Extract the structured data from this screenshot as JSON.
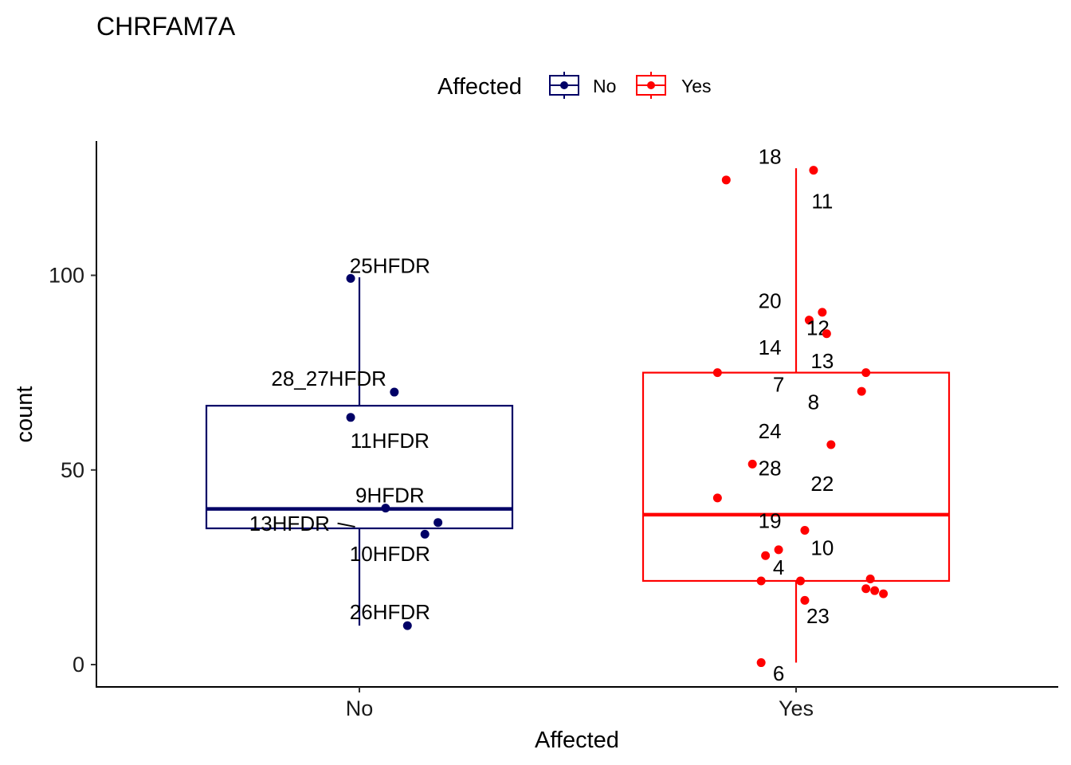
{
  "chart_data": {
    "type": "boxplot",
    "title": "CHRFAM7A",
    "xlabel": "Affected",
    "ylabel": "count",
    "ylim": [
      -5.5,
      128
    ],
    "yticks": [
      0,
      50,
      100
    ],
    "ytick_labels": [
      "0",
      "50",
      "100"
    ],
    "categories": [
      "No",
      "Yes"
    ],
    "grid": false,
    "legend": {
      "title": "Affected",
      "position": "top",
      "entries": [
        {
          "label": "No",
          "color": "#000066"
        },
        {
          "label": "Yes",
          "color": "#FF0000"
        }
      ]
    },
    "boxes": [
      {
        "category": "No",
        "color": "#000066",
        "whisker_low": 10,
        "q1": 35,
        "median": 40,
        "q3": 66.5,
        "whisker_high": 99.5
      },
      {
        "category": "Yes",
        "color": "#FF0000",
        "whisker_low": 0.5,
        "q1": 21.5,
        "median": 38.5,
        "q3": 75,
        "whisker_high": 127.5
      }
    ],
    "points": [
      {
        "category": "No",
        "jitter": -0.02,
        "value": 99.2,
        "label": "25HFDR",
        "lx": 0.07,
        "ly": 102.5
      },
      {
        "category": "No",
        "jitter": 0.08,
        "value": 70,
        "label": "28_27HFDR",
        "lx": -0.07,
        "ly": 73.5
      },
      {
        "category": "No",
        "jitter": -0.02,
        "value": 63.5,
        "label": "11HFDR",
        "lx": 0.07,
        "ly": 57.5
      },
      {
        "category": "No",
        "jitter": 0.06,
        "value": 40.2,
        "label": "9HFDR",
        "lx": 0.07,
        "ly": 43.5
      },
      {
        "category": "No",
        "jitter": 0.18,
        "value": 36.5,
        "label": "13HFDR",
        "lx": -0.16,
        "ly": 36.2,
        "seg": [
          -0.05,
          36.3,
          -0.01,
          35.4
        ]
      },
      {
        "category": "No",
        "jitter": 0.15,
        "value": 33.5,
        "label": "10HFDR",
        "lx": 0.07,
        "ly": 28.5
      },
      {
        "category": "No",
        "jitter": 0.11,
        "value": 10,
        "label": "26HFDR",
        "lx": 0.07,
        "ly": 13.5
      },
      {
        "category": "Yes",
        "jitter": 0.04,
        "value": 127,
        "label": "18",
        "lx": -0.06,
        "ly": 130.5
      },
      {
        "category": "Yes",
        "jitter": -0.16,
        "value": 124.5,
        "label": "11",
        "lx": 0.06,
        "ly": 119
      },
      {
        "category": "Yes",
        "jitter": 0.06,
        "value": 90.5,
        "label": "20",
        "lx": -0.06,
        "ly": 93.5
      },
      {
        "category": "Yes",
        "jitter": 0.03,
        "value": 88.5,
        "label": "12",
        "lx": 0.05,
        "ly": 86.5
      },
      {
        "category": "Yes",
        "jitter": 0.07,
        "value": 85,
        "label": "14",
        "lx": -0.06,
        "ly": 81.5
      },
      {
        "category": "Yes",
        "jitter": -0.18,
        "value": 75,
        "label": "13",
        "lx": 0.06,
        "ly": 78
      },
      {
        "category": "Yes",
        "jitter": 0.16,
        "value": 75,
        "label": "7",
        "lx": -0.04,
        "ly": 72
      },
      {
        "category": "Yes",
        "jitter": 0.15,
        "value": 70.2,
        "label": "8",
        "lx": 0.04,
        "ly": 67.5
      },
      {
        "category": "Yes",
        "jitter": 0.08,
        "value": 56.5,
        "label": "24",
        "lx": -0.06,
        "ly": 60
      },
      {
        "category": "Yes",
        "jitter": -0.1,
        "value": 51.5,
        "label": "28",
        "lx": -0.06,
        "ly": 50.5
      },
      {
        "category": "Yes",
        "jitter": -0.18,
        "value": 42.8,
        "label": "22",
        "lx": 0.06,
        "ly": 46.5
      },
      {
        "category": "Yes",
        "jitter": 0.02,
        "value": 34.5,
        "label": "19",
        "lx": -0.06,
        "ly": 37
      },
      {
        "category": "Yes",
        "jitter": -0.04,
        "value": 29.5,
        "label": "10",
        "lx": 0.06,
        "ly": 30
      },
      {
        "category": "Yes",
        "jitter": -0.07,
        "value": 28,
        "label": "4",
        "lx": -0.04,
        "ly": 25
      },
      {
        "category": "Yes",
        "jitter": -0.08,
        "value": 21.5,
        "label": "",
        "lx": 0,
        "ly": 0
      },
      {
        "category": "Yes",
        "jitter": 0.01,
        "value": 21.5,
        "label": "",
        "lx": 0,
        "ly": 0
      },
      {
        "category": "Yes",
        "jitter": 0.17,
        "value": 22,
        "label": "",
        "lx": 0,
        "ly": 0
      },
      {
        "category": "Yes",
        "jitter": 0.16,
        "value": 19.5,
        "label": "",
        "lx": 0,
        "ly": 0
      },
      {
        "category": "Yes",
        "jitter": 0.18,
        "value": 19,
        "label": "",
        "lx": 0,
        "ly": 0
      },
      {
        "category": "Yes",
        "jitter": 0.2,
        "value": 18.2,
        "label": "",
        "lx": 0,
        "ly": 0
      },
      {
        "category": "Yes",
        "jitter": 0.02,
        "value": 16.5,
        "label": "23",
        "lx": 0.05,
        "ly": 12.5
      },
      {
        "category": "Yes",
        "jitter": -0.08,
        "value": 0.5,
        "label": "6",
        "lx": -0.04,
        "ly": -2.3
      }
    ]
  }
}
